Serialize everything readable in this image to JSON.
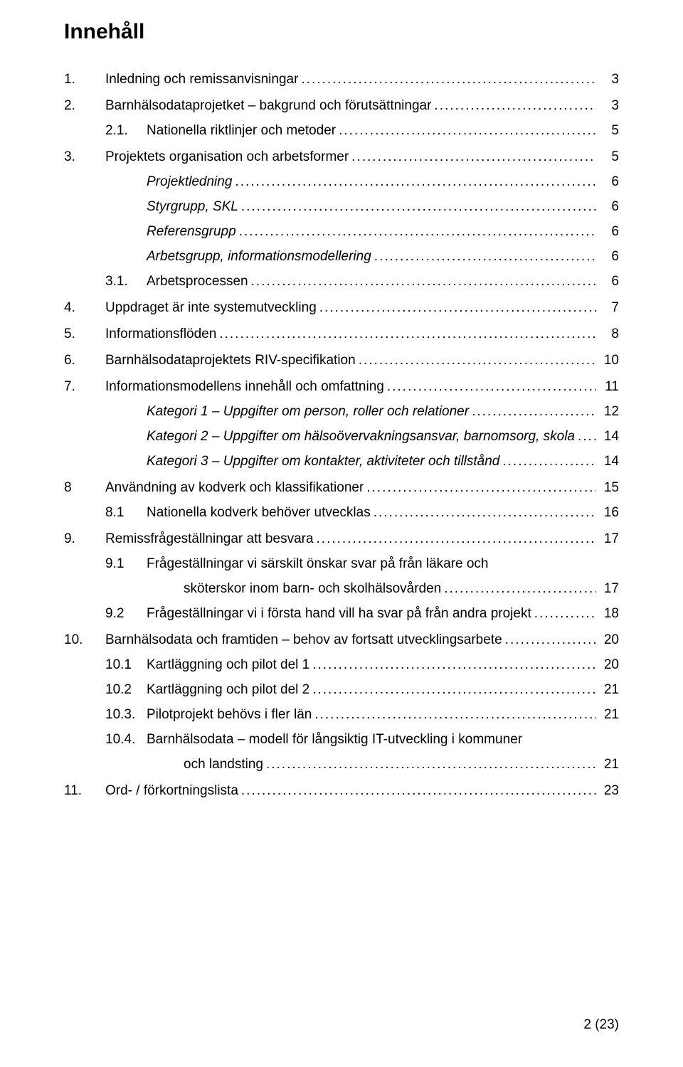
{
  "heading": "Innehåll",
  "footer": "2 (23)",
  "entries": [
    {
      "level": 0,
      "num": "1.",
      "text": "Inledning och remissanvisningar",
      "page": "3",
      "spaced": true
    },
    {
      "level": 0,
      "num": "2.",
      "text": "Barnhälsodataprojetket – bakgrund och förutsättningar",
      "page": "3",
      "spaced": true
    },
    {
      "level": 1,
      "num": "2.1.",
      "text": "Nationella riktlinjer och metoder",
      "page": "5"
    },
    {
      "level": 0,
      "num": "3.",
      "text": "Projektets organisation och arbetsformer",
      "page": "5",
      "spaced": true
    },
    {
      "level": 1,
      "num": "",
      "text": "Projektledning",
      "italic": true,
      "page": "6"
    },
    {
      "level": 1,
      "num": "",
      "text": "Styrgrupp, SKL",
      "italic": true,
      "page": "6"
    },
    {
      "level": 1,
      "num": "",
      "text": "Referensgrupp",
      "italic": true,
      "page": "6"
    },
    {
      "level": 1,
      "num": "",
      "text": "Arbetsgrupp, informationsmodellering",
      "italic": true,
      "page": "6"
    },
    {
      "level": 1,
      "num": "3.1.",
      "text": "Arbetsprocessen",
      "page": "6"
    },
    {
      "level": 0,
      "num": "4.",
      "text": "Uppdraget är inte systemutveckling",
      "page": "7",
      "spaced": true
    },
    {
      "level": 0,
      "num": "5.",
      "text": "Informationsflöden",
      "page": "8",
      "spaced": true
    },
    {
      "level": 0,
      "num": "6.",
      "text": "Barnhälsodataprojektets RIV-specifikation",
      "page": "10",
      "spaced": true
    },
    {
      "level": 0,
      "num": "7.",
      "text": "Informationsmodellens innehåll och omfattning",
      "page": "11",
      "spaced": true
    },
    {
      "level": 1,
      "num": "",
      "text": "Kategori 1 – Uppgifter om person, roller och relationer",
      "italic": true,
      "page": "12"
    },
    {
      "level": 1,
      "num": "",
      "text": "Kategori 2 – Uppgifter om hälsoövervakningsansvar, barnomsorg, skola",
      "italic": true,
      "page": "14"
    },
    {
      "level": 1,
      "num": "",
      "text": "Kategori 3 – Uppgifter om kontakter, aktiviteter och tillstånd",
      "italic": true,
      "page": "14"
    },
    {
      "level": 0,
      "num": "8",
      "text": "Användning av kodverk och klassifikationer",
      "page": "15",
      "spaced": true
    },
    {
      "level": 1,
      "num": "8.1",
      "text": "Nationella kodverk behöver utvecklas",
      "page": "16"
    },
    {
      "level": 0,
      "num": "9.",
      "text": "Remissfrågeställningar att besvara",
      "page": "17",
      "spaced": true
    },
    {
      "level": 1,
      "num": "9.1",
      "text": "Frågeställningar vi särskilt önskar svar på från läkare och",
      "noLeader": true
    },
    {
      "level": "cont",
      "num": "",
      "text": "sköterskor inom barn- och skolhälsovården",
      "page": "17"
    },
    {
      "level": 1,
      "num": "9.2",
      "text": "Frågeställningar vi i första hand vill ha svar på från andra projekt",
      "page": "18"
    },
    {
      "level": 0,
      "num": "10.",
      "text": "Barnhälsodata och framtiden – behov av fortsatt utvecklingsarbete",
      "page": "20",
      "spaced": true
    },
    {
      "level": 1,
      "num": "10.1",
      "text": "Kartläggning och pilot del 1",
      "page": "20"
    },
    {
      "level": 1,
      "num": "10.2",
      "text": "Kartläggning och pilot del 2",
      "page": "21"
    },
    {
      "level": 1,
      "num": "10.3.",
      "text": "Pilotprojekt behövs i fler län",
      "page": "21"
    },
    {
      "level": 1,
      "num": "10.4.",
      "text": "Barnhälsodata – modell för långsiktig IT-utveckling i kommuner",
      "noLeader": true
    },
    {
      "level": "cont",
      "num": "",
      "text": "och landsting",
      "page": "21"
    },
    {
      "level": 0,
      "num": "11.",
      "text": "Ord- / förkortningslista",
      "page": "23",
      "spaced": true
    }
  ]
}
